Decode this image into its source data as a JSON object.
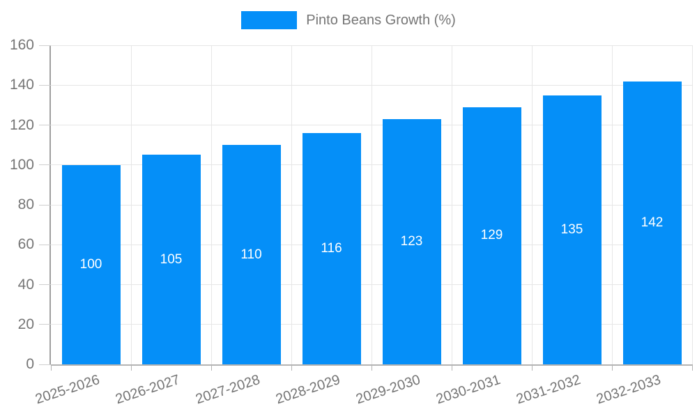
{
  "chart_data": {
    "type": "bar",
    "title": "",
    "xlabel": "",
    "ylabel": "",
    "legend": {
      "label": "Pinto Beans Growth (%)",
      "position": "top"
    },
    "categories": [
      "2025-2026",
      "2026-2027",
      "2027-2028",
      "2028-2029",
      "2029-2030",
      "2030-2031",
      "2031-2032",
      "2032-2033"
    ],
    "series": [
      {
        "name": "Pinto Beans Growth (%)",
        "values": [
          100,
          105,
          110,
          116,
          123,
          129,
          135,
          142
        ]
      }
    ],
    "value_labels": [
      "100",
      "105",
      "110",
      "116",
      "123",
      "129",
      "135",
      "142"
    ],
    "ylim": [
      0,
      160
    ],
    "ytick_step": 20,
    "ytick_labels": [
      "0",
      "20",
      "40",
      "60",
      "80",
      "100",
      "120",
      "140",
      "160"
    ],
    "grid": true,
    "colors": {
      "bar": "#058ff8",
      "grid": "#e6e6e6",
      "y_axis": "#9e9e9e",
      "x_axis": "#b3b3b3",
      "tick": "#cfcfcf",
      "text": "#757575",
      "value_label": "#ffffff",
      "background": "#ffffff"
    }
  }
}
